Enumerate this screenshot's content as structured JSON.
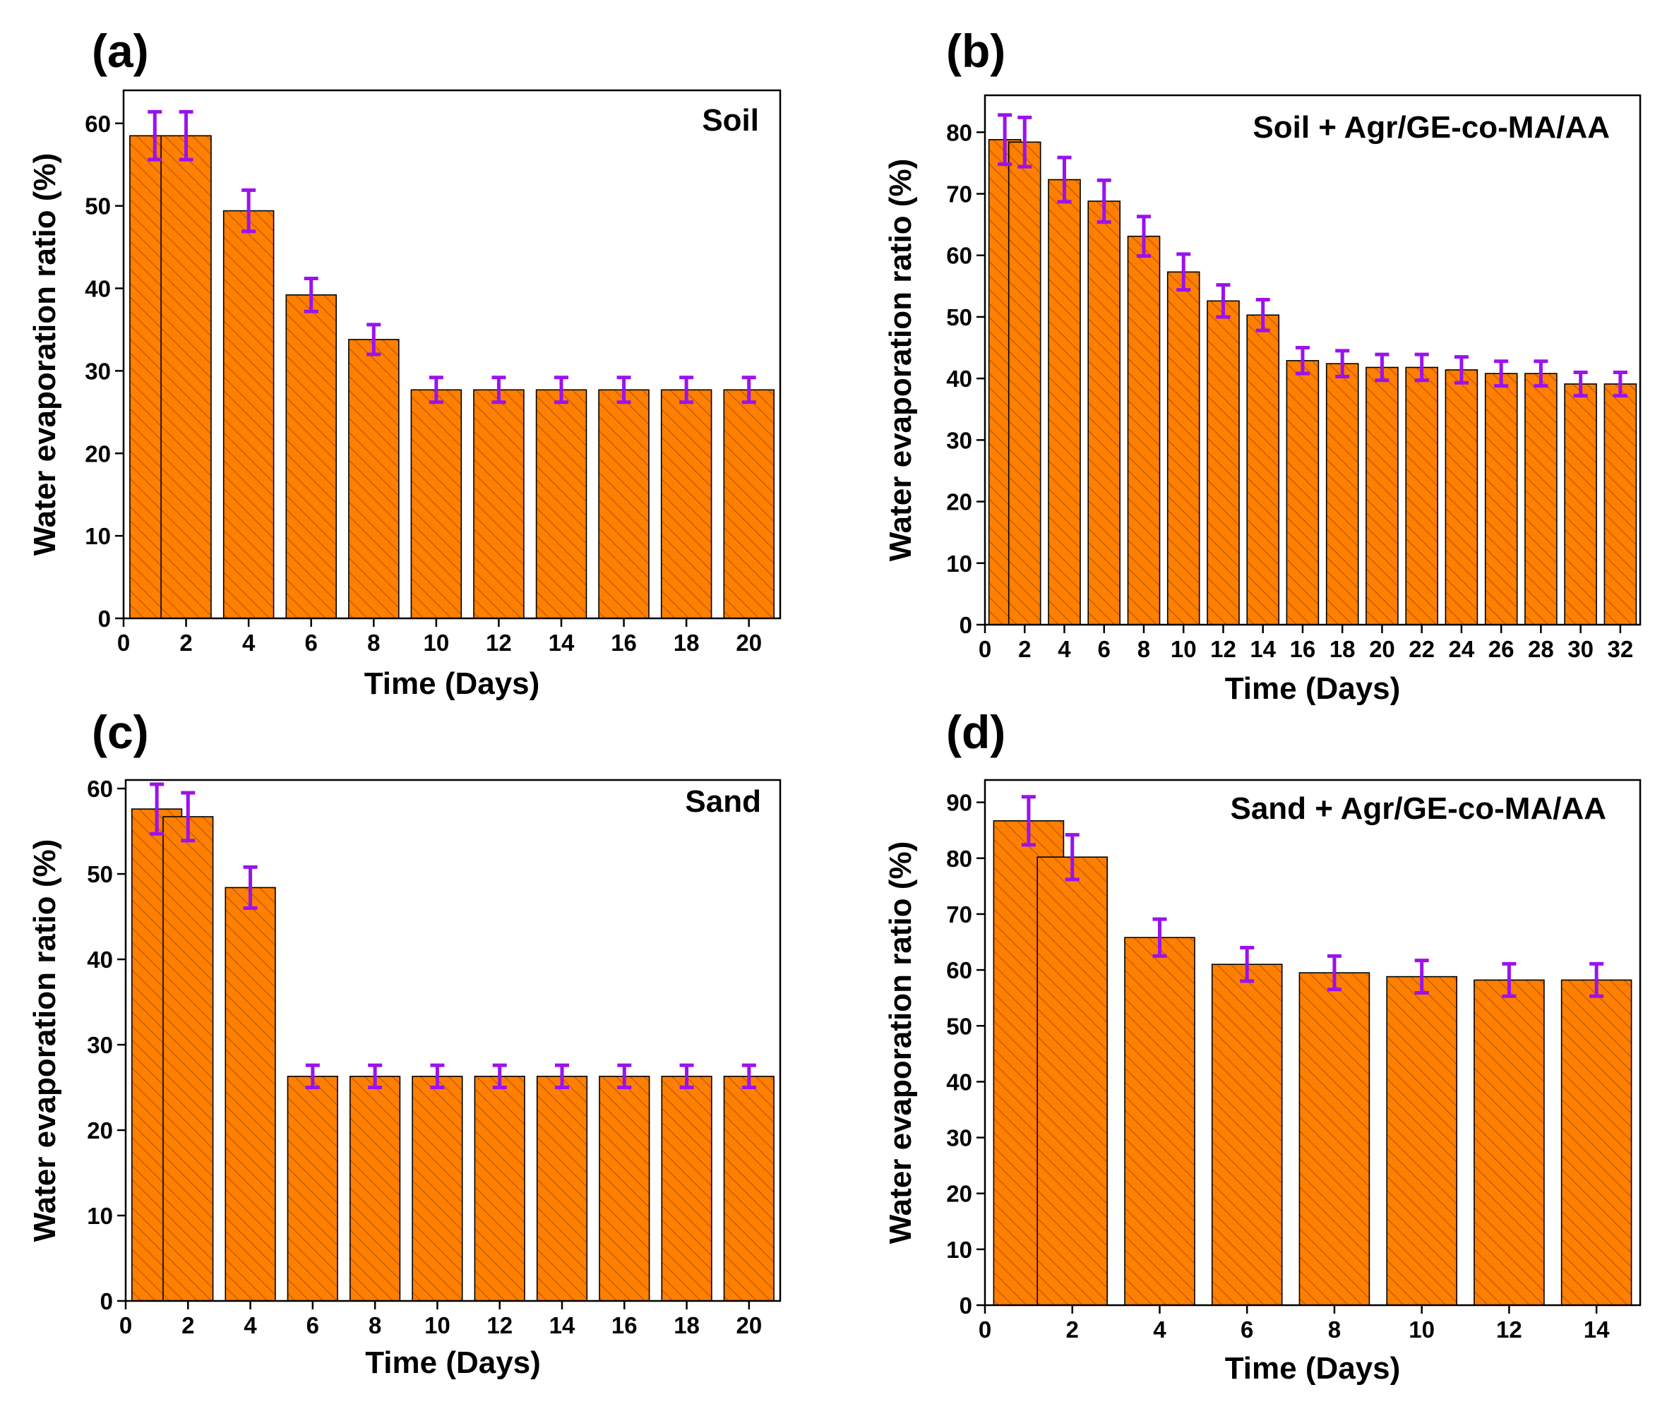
{
  "figure": {
    "colors": {
      "bar_fill": "#ff7f00",
      "bar_edge": "#000000",
      "hatch": "#b85a00",
      "error_bar": "#9a12ee"
    }
  },
  "chart_data": [
    {
      "type": "bar",
      "panel": "(a)",
      "legend": "Soil",
      "xlabel": "Time (Days)",
      "ylabel": "Water evaporation ratio (%)",
      "xlim": [
        0,
        21
      ],
      "ylim": [
        0,
        64
      ],
      "xticks": [
        0,
        2,
        4,
        6,
        8,
        10,
        12,
        14,
        16,
        18,
        20
      ],
      "yticks": [
        0,
        10,
        20,
        30,
        40,
        50,
        60
      ],
      "bar_width": 1.6,
      "x": [
        1,
        2,
        4,
        6,
        8,
        10,
        12,
        14,
        16,
        18,
        20
      ],
      "values": [
        58.5,
        58.5,
        49.4,
        39.2,
        33.8,
        27.7,
        27.7,
        27.7,
        27.7,
        27.7,
        27.7
      ],
      "errors": [
        2.9,
        2.9,
        2.5,
        2.0,
        1.8,
        1.5,
        1.5,
        1.5,
        1.5,
        1.5,
        1.5
      ]
    },
    {
      "type": "bar",
      "panel": "(b)",
      "legend": "Soil + Agr/GE-co-MA/AA",
      "xlabel": "Time (Days)",
      "ylabel": "Water evaporation ratio (%)",
      "xlim": [
        0,
        33
      ],
      "ylim": [
        0,
        86
      ],
      "xticks": [
        0,
        2,
        4,
        6,
        8,
        10,
        12,
        14,
        16,
        18,
        20,
        22,
        24,
        26,
        28,
        30,
        32
      ],
      "yticks": [
        0,
        10,
        20,
        30,
        40,
        50,
        60,
        70,
        80
      ],
      "bar_width": 1.6,
      "x": [
        1,
        2,
        4,
        6,
        8,
        10,
        12,
        14,
        16,
        18,
        20,
        22,
        24,
        26,
        28,
        30,
        32
      ],
      "values": [
        78.8,
        78.4,
        72.3,
        68.8,
        63.1,
        57.3,
        52.6,
        50.3,
        42.9,
        42.4,
        41.8,
        41.8,
        41.4,
        40.8,
        40.8,
        39.1,
        39.1
      ],
      "errors": [
        4.0,
        4.0,
        3.6,
        3.4,
        3.2,
        2.9,
        2.6,
        2.5,
        2.1,
        2.1,
        2.1,
        2.1,
        2.1,
        2.0,
        2.0,
        1.9,
        1.9
      ]
    },
    {
      "type": "bar",
      "panel": "(c)",
      "legend": "Sand",
      "xlabel": "Time (Days)",
      "ylabel": "Water evaporation ratio (%)",
      "xlim": [
        0,
        21
      ],
      "ylim": [
        0,
        61
      ],
      "xticks": [
        0,
        2,
        4,
        6,
        8,
        10,
        12,
        14,
        16,
        18,
        20
      ],
      "yticks": [
        0,
        10,
        20,
        30,
        40,
        50,
        60
      ],
      "bar_width": 1.6,
      "x": [
        1,
        2,
        4,
        6,
        8,
        10,
        12,
        14,
        16,
        18,
        20
      ],
      "values": [
        57.6,
        56.7,
        48.4,
        26.3,
        26.3,
        26.3,
        26.3,
        26.3,
        26.3,
        26.3,
        26.3
      ],
      "errors": [
        2.9,
        2.8,
        2.4,
        1.3,
        1.3,
        1.3,
        1.3,
        1.3,
        1.3,
        1.3,
        1.3
      ]
    },
    {
      "type": "bar",
      "panel": "(d)",
      "legend": "Sand + Agr/GE-co-MA/AA",
      "xlabel": "Time (Days)",
      "ylabel": "Water evaporation ratio (%)",
      "xlim": [
        0,
        15
      ],
      "ylim": [
        0,
        94
      ],
      "xticks": [
        0,
        2,
        4,
        6,
        8,
        10,
        12,
        14
      ],
      "yticks": [
        0,
        10,
        20,
        30,
        40,
        50,
        60,
        70,
        80,
        90
      ],
      "bar_width": 1.6,
      "x": [
        1,
        2,
        4,
        6,
        8,
        10,
        12,
        14
      ],
      "values": [
        86.7,
        80.2,
        65.8,
        61.0,
        59.5,
        58.8,
        58.2,
        58.2
      ],
      "errors": [
        4.3,
        4.0,
        3.3,
        3.0,
        3.0,
        2.9,
        2.9,
        2.9
      ]
    }
  ]
}
